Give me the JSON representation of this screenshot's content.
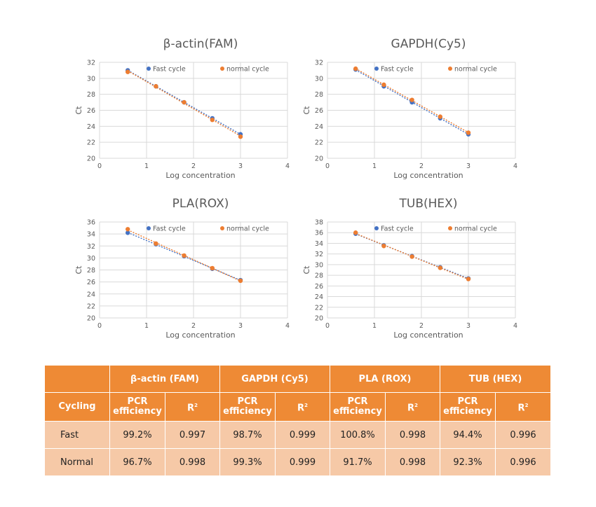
{
  "charts": [
    {
      "id": "bactin",
      "title": "β-actin(FAM)",
      "ylabel": "Ct",
      "xlabel": "Log concentration",
      "xlim": [
        0,
        4
      ],
      "ylim": [
        20,
        32
      ],
      "ystep": 2,
      "xticks": [
        "0",
        "1",
        "2",
        "3",
        "4"
      ],
      "yticks": [
        "20",
        "22",
        "24",
        "26",
        "28",
        "30",
        "32"
      ],
      "legend": [
        "Fast cycle",
        "normal cycle"
      ],
      "series": [
        {
          "name": "Fast cycle",
          "color": "#4472c4",
          "points": [
            [
              0.6,
              31.0
            ],
            [
              1.2,
              29.0
            ],
            [
              1.8,
              27.0
            ],
            [
              2.4,
              25.0
            ],
            [
              3.0,
              23.0
            ]
          ]
        },
        {
          "name": "normal cycle",
          "color": "#ed7d31",
          "points": [
            [
              0.6,
              30.8
            ],
            [
              1.2,
              29.0
            ],
            [
              1.8,
              27.0
            ],
            [
              2.4,
              24.8
            ],
            [
              3.0,
              22.7
            ]
          ]
        }
      ]
    },
    {
      "id": "gapdh",
      "title": "GAPDH(Cy5)",
      "ylabel": "Ct",
      "xlabel": "Log concentration",
      "xlim": [
        0,
        4
      ],
      "ylim": [
        20,
        32
      ],
      "ystep": 2,
      "xticks": [
        "0",
        "1",
        "2",
        "3",
        "4"
      ],
      "yticks": [
        "20",
        "22",
        "24",
        "26",
        "28",
        "30",
        "32"
      ],
      "legend": [
        "Fast cycle",
        "normal cycle"
      ],
      "series": [
        {
          "name": "Fast cycle",
          "color": "#4472c4",
          "points": [
            [
              0.6,
              31.1
            ],
            [
              1.2,
              29.0
            ],
            [
              1.8,
              27.0
            ],
            [
              2.4,
              25.0
            ],
            [
              3.0,
              23.0
            ]
          ]
        },
        {
          "name": "normal cycle",
          "color": "#ed7d31",
          "points": [
            [
              0.6,
              31.2
            ],
            [
              1.2,
              29.2
            ],
            [
              1.8,
              27.3
            ],
            [
              2.4,
              25.2
            ],
            [
              3.0,
              23.2
            ]
          ]
        }
      ]
    },
    {
      "id": "pla",
      "title": "PLA(ROX)",
      "ylabel": "Ct",
      "xlabel": "Log concentration",
      "xlim": [
        0,
        4
      ],
      "ylim": [
        20,
        36
      ],
      "ystep": 2,
      "xticks": [
        "0",
        "1",
        "2",
        "3",
        "4"
      ],
      "yticks": [
        "20",
        "22",
        "24",
        "26",
        "28",
        "30",
        "32",
        "34",
        "36"
      ],
      "legend": [
        "Fast cycle",
        "normal cycle"
      ],
      "series": [
        {
          "name": "Fast cycle",
          "color": "#4472c4",
          "points": [
            [
              0.6,
              34.2
            ],
            [
              1.2,
              32.3
            ],
            [
              1.8,
              30.3
            ],
            [
              2.4,
              28.2
            ],
            [
              3.0,
              26.3
            ]
          ]
        },
        {
          "name": "normal cycle",
          "color": "#ed7d31",
          "points": [
            [
              0.6,
              34.8
            ],
            [
              1.2,
              32.4
            ],
            [
              1.8,
              30.4
            ],
            [
              2.4,
              28.3
            ],
            [
              3.0,
              26.2
            ]
          ]
        }
      ]
    },
    {
      "id": "tub",
      "title": "TUB(HEX)",
      "ylabel": "Ct",
      "xlabel": "Log concentration",
      "xlim": [
        0,
        4
      ],
      "ylim": [
        20,
        38
      ],
      "ystep": 2,
      "xticks": [
        "0",
        "1",
        "2",
        "3",
        "4"
      ],
      "yticks": [
        "20",
        "22",
        "24",
        "26",
        "28",
        "30",
        "32",
        "34",
        "36",
        "38"
      ],
      "legend": [
        "Fast cycle",
        "normal cycle"
      ],
      "series": [
        {
          "name": "Fast cycle",
          "color": "#4472c4",
          "points": [
            [
              0.6,
              35.8
            ],
            [
              1.2,
              33.6
            ],
            [
              1.8,
              31.6
            ],
            [
              2.4,
              29.5
            ],
            [
              3.0,
              27.4
            ]
          ]
        },
        {
          "name": "normal cycle",
          "color": "#ed7d31",
          "points": [
            [
              0.6,
              36.0
            ],
            [
              1.2,
              33.5
            ],
            [
              1.8,
              31.5
            ],
            [
              2.4,
              29.4
            ],
            [
              3.0,
              27.3
            ]
          ]
        }
      ]
    }
  ],
  "table": {
    "head1": [
      "β-actin (FAM)",
      "GAPDH (Cy5)",
      "PLA (ROX)",
      "TUB (HEX)"
    ],
    "cycling": "Cycling",
    "pcr_line1": "PCR",
    "pcr_line2": "efficiency",
    "r_label": "R",
    "r_sup": "2",
    "rows": [
      {
        "label": "Fast",
        "values": [
          "99.2%",
          "0.997",
          "98.7%",
          "0.999",
          "100.8%",
          "0.998",
          "94.4%",
          "0.996"
        ]
      },
      {
        "label": "Normal",
        "values": [
          "96.7%",
          "0.998",
          "99.3%",
          "0.999",
          "91.7%",
          "0.998",
          "92.3%",
          "0.996"
        ]
      }
    ]
  }
}
